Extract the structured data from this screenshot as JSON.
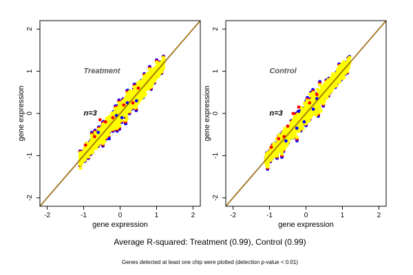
{
  "chart_data": [
    {
      "type": "scatter",
      "title": "Treatment",
      "annotation": "n=3",
      "xlabel": "gene expression",
      "ylabel": "gene expression",
      "xlim": [
        -2.2,
        2.2
      ],
      "ylim": [
        -2.2,
        2.2
      ],
      "xticks": [
        -2,
        -1,
        0,
        1,
        2
      ],
      "yticks": [
        -2,
        -1,
        0,
        1,
        2
      ],
      "xtick_labels": [
        "-2",
        "-1",
        "0",
        "1",
        "2"
      ],
      "ytick_labels": [
        "-2",
        "-1",
        "0",
        "1",
        "2"
      ],
      "grid": false,
      "reference_lines": [
        {
          "slope": 1,
          "intercept": 0,
          "color": "#000000"
        },
        {
          "slope": 1,
          "intercept": 0,
          "color": "#FFA500"
        }
      ],
      "point_cloud": {
        "x_range": [
          -1.1,
          1.2
        ],
        "colors": [
          "#0000FF",
          "#FF0000",
          "#FFFF00"
        ]
      },
      "outliers": {
        "red": [
          [
            -0.55,
            -0.15
          ],
          [
            -0.4,
            -0.2
          ],
          [
            -0.95,
            -0.75
          ],
          [
            0.1,
            0.2
          ],
          [
            0.5,
            0.6
          ],
          [
            -0.2,
            -0.1
          ],
          [
            0.35,
            0.25
          ],
          [
            -0.7,
            -0.55
          ]
        ],
        "blue": [
          [
            -0.3,
            -0.6
          ],
          [
            0.05,
            -0.1
          ],
          [
            0.45,
            0.3
          ],
          [
            -0.1,
            -0.05
          ],
          [
            -0.6,
            -0.45
          ],
          [
            0.2,
            0.25
          ]
        ]
      }
    },
    {
      "type": "scatter",
      "title": "Control",
      "annotation": "n=3",
      "xlabel": "gene expression",
      "ylabel": "gene expression",
      "xlim": [
        -2.2,
        2.2
      ],
      "ylim": [
        -2.2,
        2.2
      ],
      "xticks": [
        -2,
        -1,
        0,
        1,
        2
      ],
      "yticks": [
        -2,
        -1,
        0,
        1,
        2
      ],
      "xtick_labels": [
        "-2",
        "-1",
        "0",
        "1",
        "2"
      ],
      "ytick_labels": [
        "-2",
        "-1",
        "0",
        "1",
        "2"
      ],
      "grid": false,
      "reference_lines": [
        {
          "slope": 1,
          "intercept": 0,
          "color": "#000000"
        },
        {
          "slope": 1,
          "intercept": 0,
          "color": "#FFA500"
        }
      ],
      "point_cloud": {
        "x_range": [
          -1.1,
          1.2
        ],
        "colors": [
          "#0000FF",
          "#FF0000",
          "#FFFF00"
        ]
      },
      "outliers": {
        "red": [
          [
            -0.5,
            -0.3
          ],
          [
            -0.2,
            0.15
          ],
          [
            -0.95,
            -0.8
          ],
          [
            0.3,
            0.45
          ],
          [
            -0.75,
            -0.6
          ],
          [
            -0.35,
            0.0
          ],
          [
            0.1,
            0.25
          ],
          [
            -0.6,
            -0.55
          ]
        ],
        "blue": [
          [
            -0.2,
            0.05
          ],
          [
            -0.25,
            -0.35
          ],
          [
            0.2,
            0.1
          ],
          [
            -0.55,
            -0.65
          ],
          [
            -0.05,
            -0.2
          ],
          [
            0.3,
            0.35
          ]
        ]
      }
    }
  ],
  "caption": {
    "line1": "Average R-squared: Treatment (0.99), Control (0.99)",
    "line2": "Genes detected at least one chip were plotted (detection p-value < 0.01)"
  }
}
